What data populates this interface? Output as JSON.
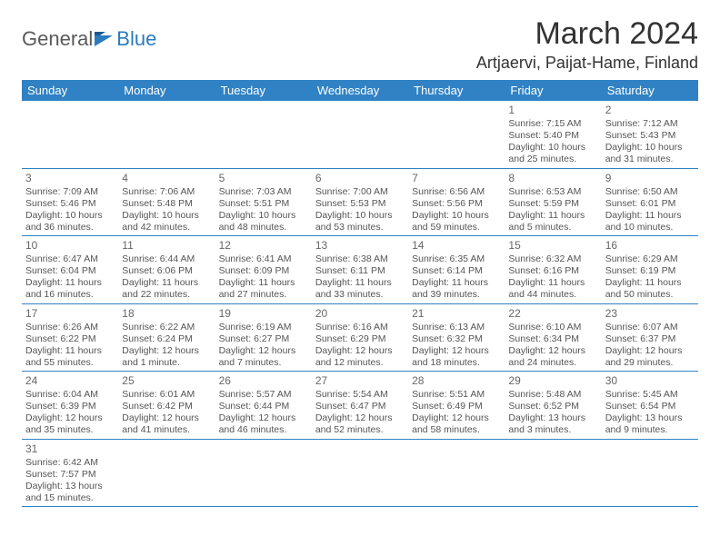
{
  "logo": {
    "text1": "General",
    "text2": "Blue"
  },
  "title": "March 2024",
  "location": "Artjaervi, Paijat-Hame, Finland",
  "colors": {
    "header_bg": "#3082c4",
    "header_text": "#ffffff",
    "border": "#3082c4",
    "logo_gray": "#5a5a5a",
    "logo_blue": "#2b7bbf",
    "text": "#555555"
  },
  "weekdays": [
    "Sunday",
    "Monday",
    "Tuesday",
    "Wednesday",
    "Thursday",
    "Friday",
    "Saturday"
  ],
  "weeks": [
    [
      null,
      null,
      null,
      null,
      null,
      {
        "day": "1",
        "sunrise": "Sunrise: 7:15 AM",
        "sunset": "Sunset: 5:40 PM",
        "daylight": "Daylight: 10 hours and 25 minutes."
      },
      {
        "day": "2",
        "sunrise": "Sunrise: 7:12 AM",
        "sunset": "Sunset: 5:43 PM",
        "daylight": "Daylight: 10 hours and 31 minutes."
      }
    ],
    [
      {
        "day": "3",
        "sunrise": "Sunrise: 7:09 AM",
        "sunset": "Sunset: 5:46 PM",
        "daylight": "Daylight: 10 hours and 36 minutes."
      },
      {
        "day": "4",
        "sunrise": "Sunrise: 7:06 AM",
        "sunset": "Sunset: 5:48 PM",
        "daylight": "Daylight: 10 hours and 42 minutes."
      },
      {
        "day": "5",
        "sunrise": "Sunrise: 7:03 AM",
        "sunset": "Sunset: 5:51 PM",
        "daylight": "Daylight: 10 hours and 48 minutes."
      },
      {
        "day": "6",
        "sunrise": "Sunrise: 7:00 AM",
        "sunset": "Sunset: 5:53 PM",
        "daylight": "Daylight: 10 hours and 53 minutes."
      },
      {
        "day": "7",
        "sunrise": "Sunrise: 6:56 AM",
        "sunset": "Sunset: 5:56 PM",
        "daylight": "Daylight: 10 hours and 59 minutes."
      },
      {
        "day": "8",
        "sunrise": "Sunrise: 6:53 AM",
        "sunset": "Sunset: 5:59 PM",
        "daylight": "Daylight: 11 hours and 5 minutes."
      },
      {
        "day": "9",
        "sunrise": "Sunrise: 6:50 AM",
        "sunset": "Sunset: 6:01 PM",
        "daylight": "Daylight: 11 hours and 10 minutes."
      }
    ],
    [
      {
        "day": "10",
        "sunrise": "Sunrise: 6:47 AM",
        "sunset": "Sunset: 6:04 PM",
        "daylight": "Daylight: 11 hours and 16 minutes."
      },
      {
        "day": "11",
        "sunrise": "Sunrise: 6:44 AM",
        "sunset": "Sunset: 6:06 PM",
        "daylight": "Daylight: 11 hours and 22 minutes."
      },
      {
        "day": "12",
        "sunrise": "Sunrise: 6:41 AM",
        "sunset": "Sunset: 6:09 PM",
        "daylight": "Daylight: 11 hours and 27 minutes."
      },
      {
        "day": "13",
        "sunrise": "Sunrise: 6:38 AM",
        "sunset": "Sunset: 6:11 PM",
        "daylight": "Daylight: 11 hours and 33 minutes."
      },
      {
        "day": "14",
        "sunrise": "Sunrise: 6:35 AM",
        "sunset": "Sunset: 6:14 PM",
        "daylight": "Daylight: 11 hours and 39 minutes."
      },
      {
        "day": "15",
        "sunrise": "Sunrise: 6:32 AM",
        "sunset": "Sunset: 6:16 PM",
        "daylight": "Daylight: 11 hours and 44 minutes."
      },
      {
        "day": "16",
        "sunrise": "Sunrise: 6:29 AM",
        "sunset": "Sunset: 6:19 PM",
        "daylight": "Daylight: 11 hours and 50 minutes."
      }
    ],
    [
      {
        "day": "17",
        "sunrise": "Sunrise: 6:26 AM",
        "sunset": "Sunset: 6:22 PM",
        "daylight": "Daylight: 11 hours and 55 minutes."
      },
      {
        "day": "18",
        "sunrise": "Sunrise: 6:22 AM",
        "sunset": "Sunset: 6:24 PM",
        "daylight": "Daylight: 12 hours and 1 minute."
      },
      {
        "day": "19",
        "sunrise": "Sunrise: 6:19 AM",
        "sunset": "Sunset: 6:27 PM",
        "daylight": "Daylight: 12 hours and 7 minutes."
      },
      {
        "day": "20",
        "sunrise": "Sunrise: 6:16 AM",
        "sunset": "Sunset: 6:29 PM",
        "daylight": "Daylight: 12 hours and 12 minutes."
      },
      {
        "day": "21",
        "sunrise": "Sunrise: 6:13 AM",
        "sunset": "Sunset: 6:32 PM",
        "daylight": "Daylight: 12 hours and 18 minutes."
      },
      {
        "day": "22",
        "sunrise": "Sunrise: 6:10 AM",
        "sunset": "Sunset: 6:34 PM",
        "daylight": "Daylight: 12 hours and 24 minutes."
      },
      {
        "day": "23",
        "sunrise": "Sunrise: 6:07 AM",
        "sunset": "Sunset: 6:37 PM",
        "daylight": "Daylight: 12 hours and 29 minutes."
      }
    ],
    [
      {
        "day": "24",
        "sunrise": "Sunrise: 6:04 AM",
        "sunset": "Sunset: 6:39 PM",
        "daylight": "Daylight: 12 hours and 35 minutes."
      },
      {
        "day": "25",
        "sunrise": "Sunrise: 6:01 AM",
        "sunset": "Sunset: 6:42 PM",
        "daylight": "Daylight: 12 hours and 41 minutes."
      },
      {
        "day": "26",
        "sunrise": "Sunrise: 5:57 AM",
        "sunset": "Sunset: 6:44 PM",
        "daylight": "Daylight: 12 hours and 46 minutes."
      },
      {
        "day": "27",
        "sunrise": "Sunrise: 5:54 AM",
        "sunset": "Sunset: 6:47 PM",
        "daylight": "Daylight: 12 hours and 52 minutes."
      },
      {
        "day": "28",
        "sunrise": "Sunrise: 5:51 AM",
        "sunset": "Sunset: 6:49 PM",
        "daylight": "Daylight: 12 hours and 58 minutes."
      },
      {
        "day": "29",
        "sunrise": "Sunrise: 5:48 AM",
        "sunset": "Sunset: 6:52 PM",
        "daylight": "Daylight: 13 hours and 3 minutes."
      },
      {
        "day": "30",
        "sunrise": "Sunrise: 5:45 AM",
        "sunset": "Sunset: 6:54 PM",
        "daylight": "Daylight: 13 hours and 9 minutes."
      }
    ],
    [
      {
        "day": "31",
        "sunrise": "Sunrise: 6:42 AM",
        "sunset": "Sunset: 7:57 PM",
        "daylight": "Daylight: 13 hours and 15 minutes."
      },
      null,
      null,
      null,
      null,
      null,
      null
    ]
  ]
}
